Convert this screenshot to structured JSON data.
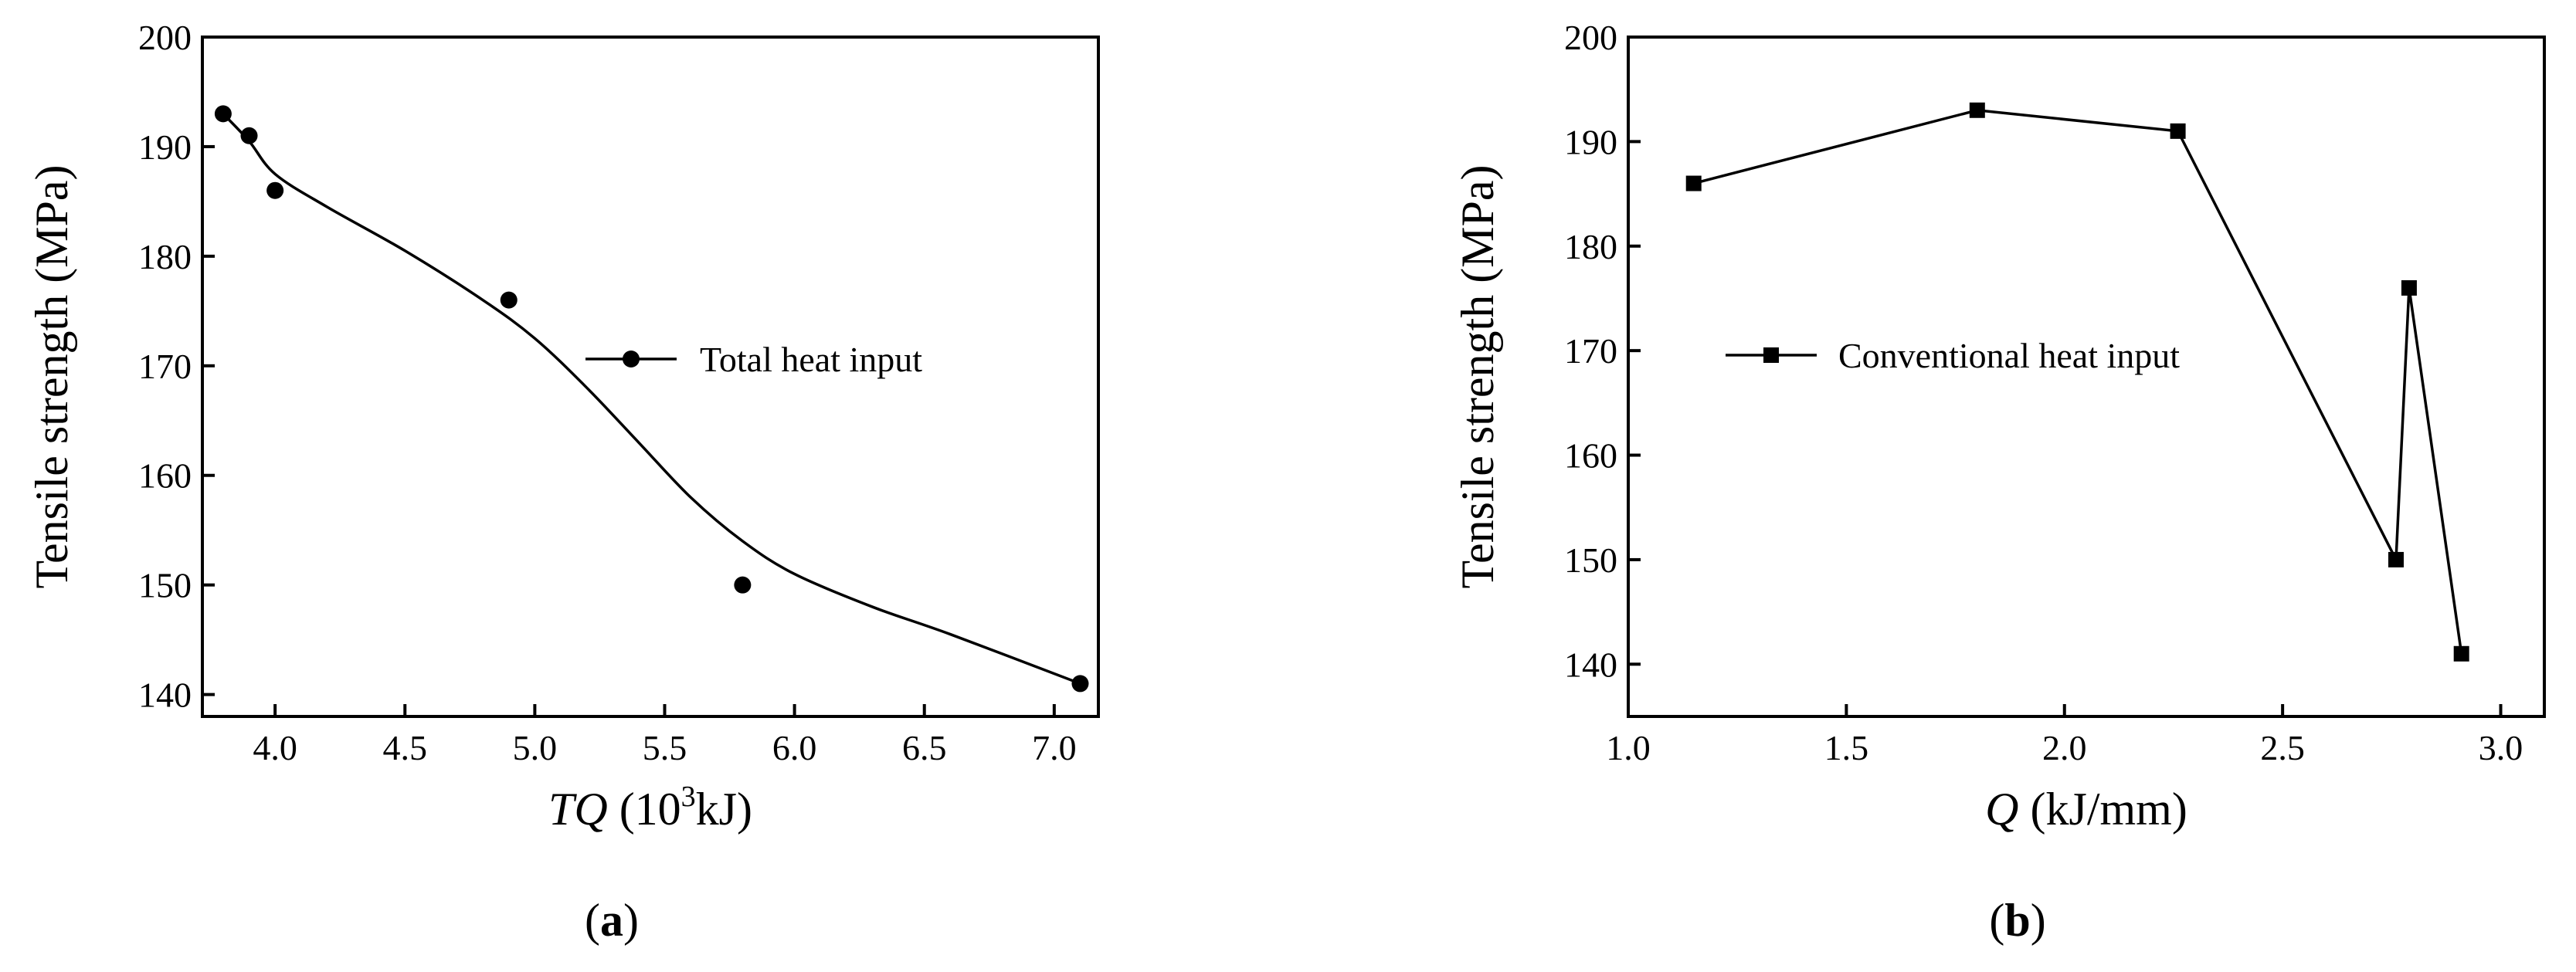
{
  "chart_data": [
    {
      "type": "scatter",
      "panel_label": "(a)",
      "panel_letter": "a",
      "ylabel": "Tensile strength (MPa)",
      "xlabel_italic": "TQ",
      "xlabel_rest": " (10",
      "xlabel_sup": "3",
      "xlabel_end": "kJ)",
      "xlim": [
        3.72,
        7.17
      ],
      "ylim": [
        138,
        200
      ],
      "xticks": [
        4.0,
        4.5,
        5.0,
        5.5,
        6.0,
        6.5,
        7.0
      ],
      "xtick_labels": [
        "4.0",
        "4.5",
        "5.0",
        "5.5",
        "6.0",
        "6.5",
        "7.0"
      ],
      "yticks": [
        140,
        150,
        160,
        170,
        180,
        190,
        200
      ],
      "ytick_labels": [
        "140",
        "150",
        "160",
        "170",
        "180",
        "190",
        "200"
      ],
      "series": [
        {
          "name": "Total heat input",
          "marker": "circle",
          "x": [
            3.8,
            3.9,
            4.0,
            4.9,
            5.8,
            7.1
          ],
          "y": [
            193,
            191,
            186,
            176,
            150,
            141
          ],
          "fit_curve": {
            "x": [
              3.8,
              3.9,
              4.0,
              4.2,
              4.5,
              4.8,
              5.0,
              5.2,
              5.4,
              5.6,
              5.8,
              6.0,
              6.3,
              6.6,
              7.1
            ],
            "y": [
              193.0,
              190.5,
              187.5,
              184.5,
              180.5,
              176.0,
              172.5,
              168.0,
              163.0,
              158.0,
              154.0,
              151.0,
              148.0,
              145.5,
              141.0
            ]
          }
        }
      ],
      "legend": "center-right",
      "grid": false
    },
    {
      "type": "line",
      "panel_label": "(b)",
      "panel_letter": "b",
      "ylabel": "Tensile strength (MPa)",
      "xlabel_italic": "Q",
      "xlabel_rest": " (kJ/mm)",
      "xlim": [
        1.0,
        3.1
      ],
      "ylim": [
        135,
        200
      ],
      "xticks": [
        1.0,
        1.5,
        2.0,
        2.5,
        3.0
      ],
      "xtick_labels": [
        "1.0",
        "1.5",
        "2.0",
        "2.5",
        "3.0"
      ],
      "yticks": [
        140,
        150,
        160,
        170,
        180,
        190,
        200
      ],
      "ytick_labels": [
        "140",
        "150",
        "160",
        "170",
        "180",
        "190",
        "200"
      ],
      "series": [
        {
          "name": "Conventional heat input",
          "marker": "square",
          "x": [
            1.15,
            1.8,
            2.26,
            2.76,
            2.79,
            2.91
          ],
          "y": [
            186,
            193,
            191,
            150,
            176,
            141
          ]
        }
      ],
      "legend": "center-left",
      "grid": false
    }
  ]
}
